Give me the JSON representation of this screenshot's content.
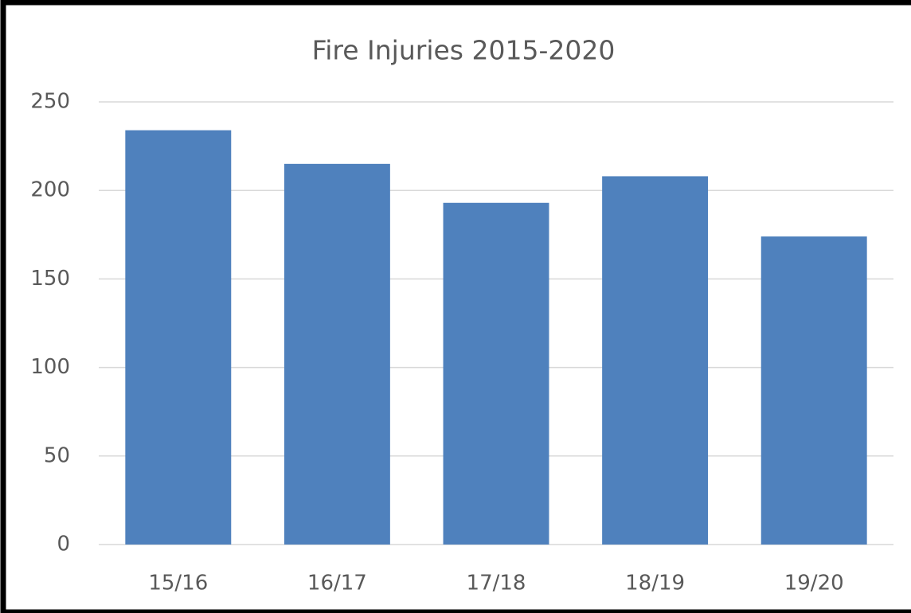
{
  "chart_data": {
    "type": "bar",
    "title": "Fire Injuries 2015-2020",
    "categories": [
      "15/16",
      "16/17",
      "17/18",
      "18/19",
      "19/20"
    ],
    "values": [
      234,
      215,
      193,
      208,
      174
    ],
    "color": "#4f81bd",
    "ylim": [
      0,
      250
    ],
    "yticks": [
      0,
      50,
      100,
      150,
      200,
      250
    ],
    "grid": true
  }
}
